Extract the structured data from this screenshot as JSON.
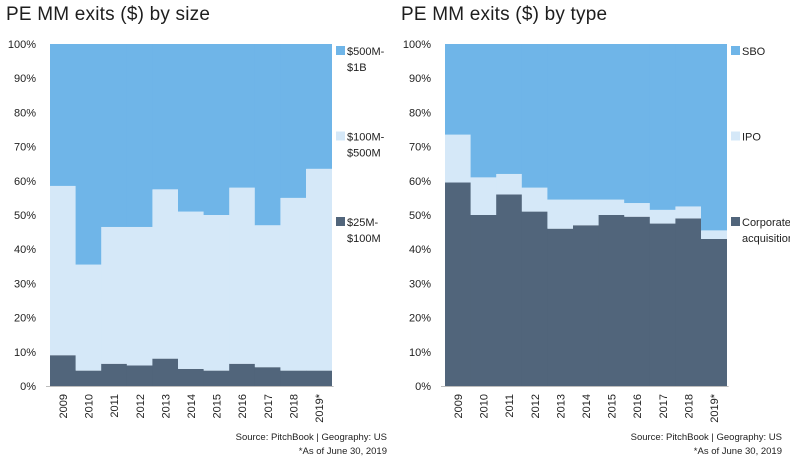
{
  "chart_data": [
    {
      "type": "bar",
      "stacked": true,
      "title": "PE MM exits ($) by size",
      "categories": [
        "2009",
        "2010",
        "2011",
        "2012",
        "2013",
        "2014",
        "2015",
        "2016",
        "2017",
        "2018",
        "2019*"
      ],
      "ylim": [
        0,
        100
      ],
      "yticks": [
        "0%",
        "10%",
        "20%",
        "30%",
        "40%",
        "50%",
        "60%",
        "70%",
        "80%",
        "90%",
        "100%"
      ],
      "grid": false,
      "legend": "right",
      "series": [
        {
          "name": "$25M-$100M",
          "legend_lines": [
            "$25M-",
            "$100M"
          ],
          "color": "#51657b",
          "values": [
            9,
            4.5,
            6.5,
            6,
            8,
            5,
            4.5,
            6.5,
            5.5,
            4.5,
            4.5
          ]
        },
        {
          "name": "$100M-$500M",
          "legend_lines": [
            "$100M-",
            "$500M"
          ],
          "color": "#d5e8f8",
          "values": [
            49.5,
            31,
            40,
            40.5,
            49.5,
            46,
            45.5,
            51.5,
            41.5,
            50.5,
            59
          ]
        },
        {
          "name": "$500M-$1B",
          "legend_lines": [
            "$500M-",
            "$1B"
          ],
          "color": "#6fb5e8",
          "values": [
            41.5,
            64.5,
            53.5,
            53.5,
            42.5,
            49,
            50,
            42,
            53,
            45,
            36.5
          ]
        }
      ],
      "source_line1": "Source: PitchBook | Geography: US",
      "source_line2": "*As of June 30, 2019"
    },
    {
      "type": "bar",
      "stacked": true,
      "title": "PE MM exits ($) by type",
      "categories": [
        "2009",
        "2010",
        "2011",
        "2012",
        "2013",
        "2014",
        "2015",
        "2016",
        "2017",
        "2018",
        "2019*"
      ],
      "ylim": [
        0,
        100
      ],
      "yticks": [
        "0%",
        "10%",
        "20%",
        "30%",
        "40%",
        "50%",
        "60%",
        "70%",
        "80%",
        "90%",
        "100%"
      ],
      "grid": false,
      "legend": "right",
      "series": [
        {
          "name": "Corporate acquisition",
          "legend_lines": [
            "Corporate",
            "acquisition"
          ],
          "color": "#51657b",
          "values": [
            59.5,
            50,
            56,
            51,
            46,
            47,
            50,
            49.5,
            47.5,
            49,
            43
          ]
        },
        {
          "name": "IPO",
          "legend_lines": [
            "IPO"
          ],
          "color": "#d5e8f8",
          "values": [
            14,
            11,
            6,
            7,
            8.5,
            7.5,
            4.5,
            4,
            4,
            3.5,
            2.5
          ]
        },
        {
          "name": "SBO",
          "legend_lines": [
            "SBO"
          ],
          "color": "#6fb5e8",
          "values": [
            26.5,
            39,
            38,
            42,
            45.5,
            45.5,
            45.5,
            46.5,
            48.5,
            47.5,
            54.5
          ]
        }
      ],
      "source_line1": "Source: PitchBook | Geography: US",
      "source_line2": "*As of June 30, 2019"
    }
  ]
}
